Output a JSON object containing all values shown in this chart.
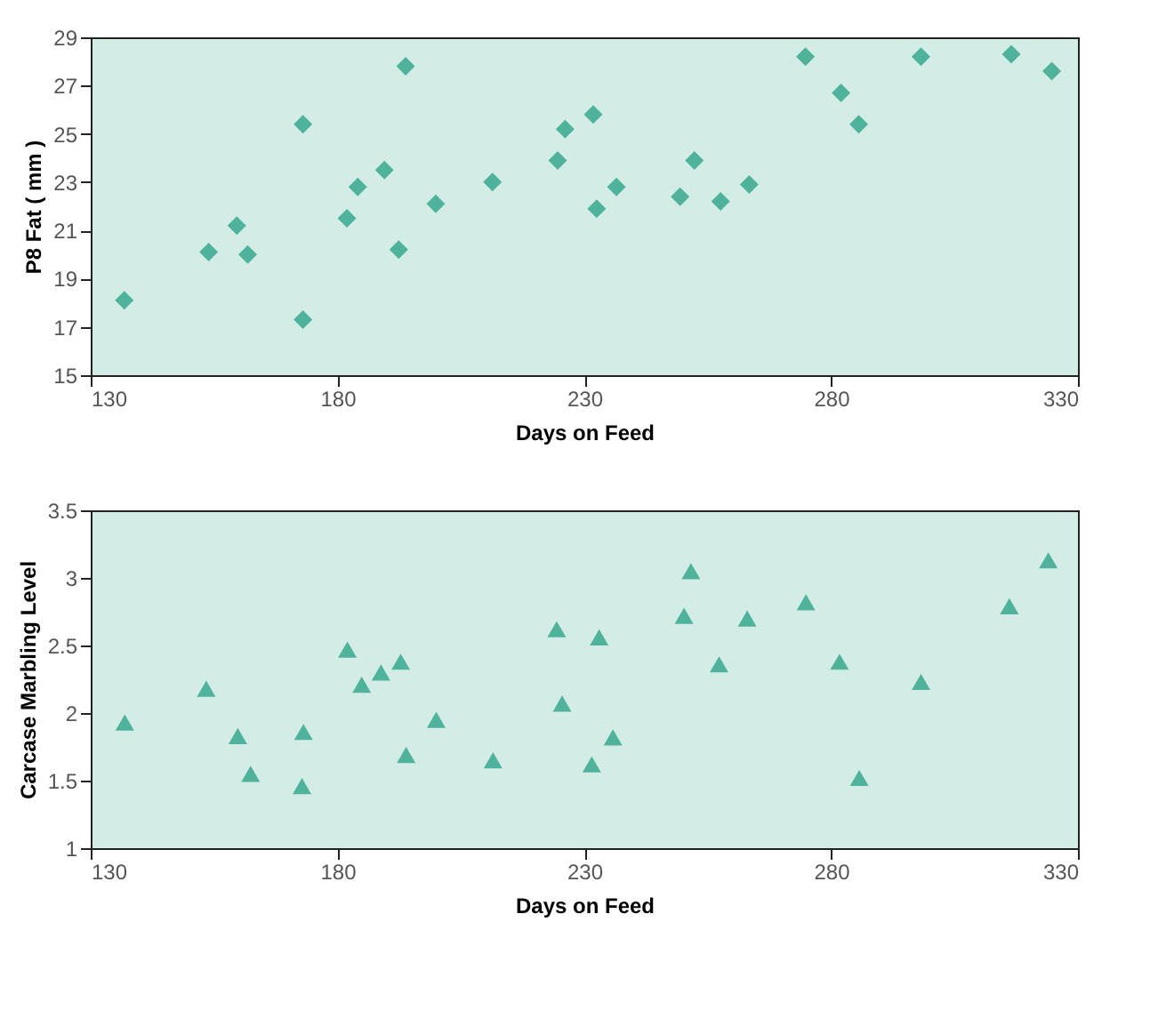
{
  "chart_data": [
    {
      "type": "scatter",
      "xlabel": "Days on Feed",
      "ylabel": "P8 Fat ( mm )",
      "marker": "diamond",
      "grid": false,
      "x": [
        136.8,
        153.9,
        159.6,
        161.8,
        173,
        173,
        181.9,
        184.1,
        189.5,
        192.4,
        193.8,
        199.9,
        211.4,
        224.6,
        226.1,
        231.8,
        232.5,
        236.5,
        249.4,
        252.3,
        257.6,
        263.4,
        274.8,
        282,
        285.6,
        298.2,
        316.5,
        324.7
      ],
      "series": [
        {
          "color": "#4fb39c",
          "values": [
            18.1,
            20.1,
            21.2,
            20.0,
            25.4,
            17.3,
            21.5,
            22.8,
            23.5,
            20.2,
            27.8,
            22.1,
            23.0,
            23.9,
            25.2,
            25.8,
            21.9,
            22.8,
            22.4,
            23.9,
            22.2,
            22.9,
            28.2,
            26.7,
            25.4,
            28.2,
            28.3,
            27.6
          ]
        }
      ],
      "xlim": [
        130,
        330
      ],
      "xticks": [
        130,
        180,
        230,
        280,
        330
      ],
      "ylim": [
        15,
        29
      ],
      "yticks": [
        15,
        17,
        19,
        21,
        23,
        25,
        27,
        29
      ]
    },
    {
      "type": "scatter",
      "xlabel": "Days on Feed",
      "ylabel": "Carcase Marbling Level",
      "marker": "triangle",
      "grid": false,
      "x": [
        136.9,
        153.4,
        159.8,
        162.4,
        173.1,
        172.8,
        182,
        184.9,
        188.8,
        192.8,
        193.9,
        200,
        211.5,
        224.4,
        225.5,
        231.5,
        233,
        235.8,
        250.2,
        251.6,
        257.3,
        263,
        274.9,
        281.7,
        285.7,
        298.2,
        316.1,
        324
      ],
      "series": [
        {
          "color": "#4fb39c",
          "values": [
            1.93,
            2.18,
            1.83,
            1.55,
            1.86,
            1.46,
            2.47,
            2.21,
            2.3,
            2.38,
            1.69,
            1.95,
            1.65,
            2.62,
            2.07,
            1.62,
            2.56,
            1.82,
            2.72,
            3.05,
            2.36,
            2.7,
            2.82,
            2.38,
            1.52,
            2.23,
            2.79,
            3.13
          ]
        }
      ],
      "xlim": [
        130,
        330
      ],
      "xticks": [
        130,
        180,
        230,
        280,
        330
      ],
      "ylim": [
        1,
        3.5
      ],
      "yticks": [
        1,
        1.5,
        2,
        2.5,
        3,
        3.5
      ]
    }
  ]
}
